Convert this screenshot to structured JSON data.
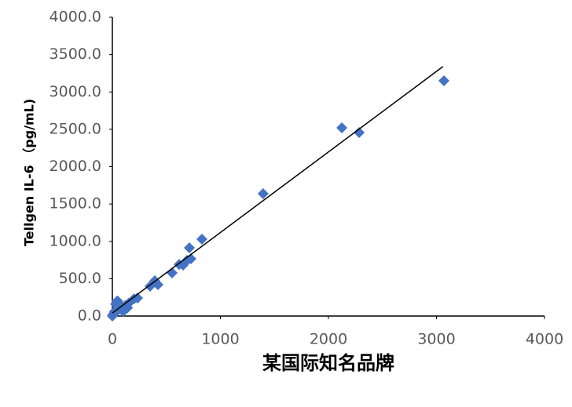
{
  "chart_data": {
    "type": "scatter",
    "x_label": "某国际知名品牌",
    "y_label": "Tellgen IL-6 （pg/mL)",
    "color": "#4472c4",
    "xlim": [
      0,
      4000
    ],
    "xticks": [
      0,
      1000,
      2000,
      3000,
      4000
    ],
    "ylim": [
      0,
      4000
    ],
    "yticks": [
      {
        "value": 0,
        "label": "0.0"
      },
      {
        "value": 500,
        "label": "500.0"
      },
      {
        "value": 1000,
        "label": "1000.0"
      },
      {
        "value": 1500,
        "label": "1500.0"
      },
      {
        "value": 2000,
        "label": "2000.0"
      },
      {
        "value": 2500,
        "label": "2500.0"
      },
      {
        "value": 3000,
        "label": "3000.0"
      },
      {
        "value": 3500,
        "label": "3500.0"
      },
      {
        "value": 4000,
        "label": "4000.0"
      }
    ],
    "grid": false,
    "x": [
      3069,
      2124,
      2284,
      1396,
      829,
      713,
      727,
      691,
      655,
      618,
      553,
      422,
      393,
      349,
      233,
      200,
      150,
      120,
      90,
      60,
      44,
      30,
      50,
      20,
      10,
      5,
      0,
      80,
      100,
      70,
      140,
      30
    ],
    "values": [
      3150,
      2520,
      2457,
      1638,
      1029,
      913,
      766,
      745,
      682,
      690,
      577,
      420,
      472,
      399,
      241,
      230,
      170,
      140,
      120,
      90,
      199,
      160,
      200,
      60,
      30,
      10,
      0,
      100,
      60,
      140,
      110,
      50
    ],
    "trendline": {
      "x": [
        0,
        3060
      ],
      "y": [
        40,
        3340
      ]
    }
  }
}
